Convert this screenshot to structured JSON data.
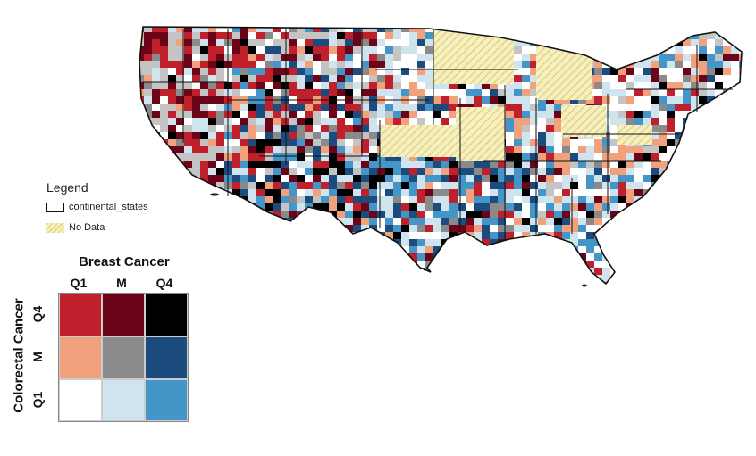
{
  "legend": {
    "title": "Legend",
    "states_label": "continental_states",
    "nodata_label": "No Data"
  },
  "bivariate": {
    "x_title": "Breast Cancer",
    "y_title": "Colorectal Cancer",
    "x_labels": [
      "Q1",
      "M",
      "Q4"
    ],
    "y_labels": [
      "Q4",
      "M",
      "Q1"
    ],
    "colors": [
      [
        "#c0202b",
        "#6b0418",
        "#000000"
      ],
      [
        "#f2a17d",
        "#8a8a8a",
        "#1c4b7e"
      ],
      [
        "#ffffff",
        "#d0e4ef",
        "#4596c8"
      ]
    ]
  },
  "colors": {
    "no_data_fill": "#f3eab0",
    "no_data_hatch": "#e0d27a",
    "unclassified": "#c4c4c4",
    "state_border": "#111111"
  }
}
